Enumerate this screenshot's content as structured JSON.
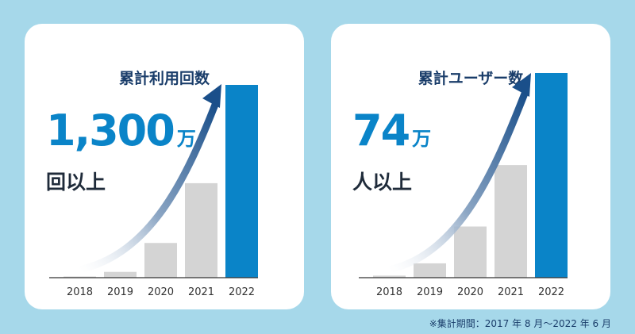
{
  "cards": [
    {
      "title": "累計利用回数",
      "big_number": "1,300",
      "big_unit": "万",
      "sub_text": "回以上"
    },
    {
      "title": "累計ユーザー数",
      "big_number": "74",
      "big_unit": "万",
      "sub_text": "人以上"
    }
  ],
  "footnote": "※集計期間：2017 年 8 月〜2022 年 6 月",
  "colors": {
    "background": "#a6d8ea",
    "bar_past": "#d4d4d4",
    "bar_current": "#0a84c8",
    "arrow": "#1a4f8a"
  },
  "chart_data": [
    {
      "type": "bar",
      "categories": [
        "2018",
        "2019",
        "2020",
        "2021",
        "2022"
      ],
      "values": [
        0,
        3,
        18,
        49,
        100
      ],
      "ylim": [
        0,
        100
      ],
      "grid": false,
      "highlight": "2022"
    },
    {
      "type": "bar",
      "categories": [
        "2018",
        "2019",
        "2020",
        "2021",
        "2022"
      ],
      "values": [
        1,
        7,
        25,
        55,
        100
      ],
      "ylim": [
        0,
        100
      ],
      "grid": false,
      "highlight": "2022"
    }
  ]
}
